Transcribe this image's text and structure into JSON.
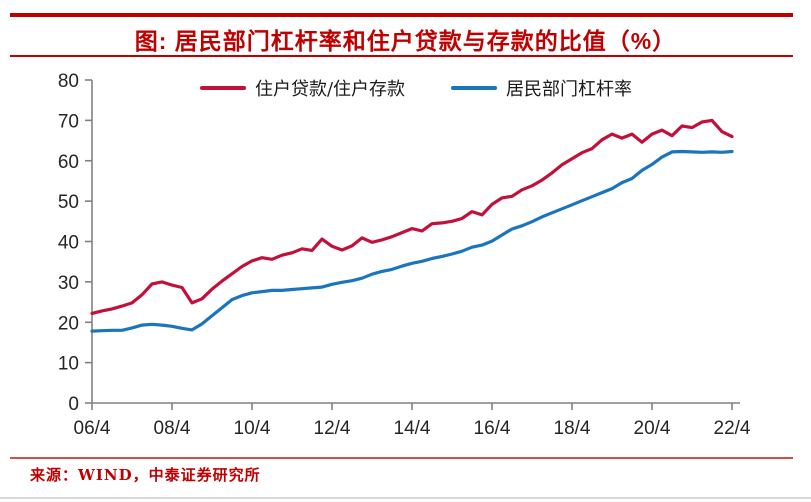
{
  "header": {
    "title": "图: 居民部门杠杆率和住户贷款与存款的比值（%）"
  },
  "footer": {
    "source": "来源：WIND，中泰证券研究所"
  },
  "colors": {
    "accent_red": "#C00000",
    "series_red": "#C21039",
    "series_blue": "#1B75BC",
    "axis_gray": "#808080",
    "tick_text": "#262626",
    "divider_gray": "#D9D9D9"
  },
  "chart_data": {
    "type": "line",
    "title": "图: 居民部门杠杆率和住户贷款与存款的比值（%）",
    "frequency": "quarterly",
    "x_start": "2006/4",
    "x_end": "2022/4",
    "x_tick_labels": [
      "06/4",
      "08/4",
      "10/4",
      "12/4",
      "14/4",
      "16/4",
      "18/4",
      "20/4",
      "22/4"
    ],
    "x_ticks_every_n_points": 8,
    "ylim": [
      0,
      80
    ],
    "y_ticks": [
      0,
      10,
      20,
      30,
      40,
      50,
      60,
      70,
      80
    ],
    "grid": false,
    "legend_position": "top-center",
    "series": [
      {
        "name": "住户贷款/住户存款",
        "color": "#C21039",
        "values": [
          22.2,
          22.8,
          23.3,
          24.0,
          24.8,
          26.8,
          29.5,
          30.0,
          29.2,
          28.6,
          24.8,
          25.8,
          28.2,
          30.2,
          32.0,
          33.8,
          35.2,
          36.0,
          35.6,
          36.6,
          37.2,
          38.2,
          37.8,
          40.6,
          38.8,
          37.9,
          38.9,
          40.9,
          39.8,
          40.4,
          41.2,
          42.2,
          43.2,
          42.6,
          44.4,
          44.6,
          45.0,
          45.7,
          47.4,
          46.6,
          49.2,
          50.8,
          51.2,
          52.8,
          53.8,
          55.2,
          57.0,
          59.0,
          60.5,
          62.0,
          63.0,
          65.2,
          66.6,
          65.6,
          66.6,
          64.6,
          66.6,
          67.6,
          66.2,
          68.6,
          68.2,
          69.6,
          70.0,
          67.2,
          66.0
        ]
      },
      {
        "name": "居民部门杠杆率",
        "color": "#1B75BC",
        "values": [
          17.8,
          17.9,
          18.0,
          18.0,
          18.6,
          19.3,
          19.5,
          19.3,
          19.0,
          18.5,
          18.1,
          19.6,
          21.6,
          23.6,
          25.6,
          26.6,
          27.3,
          27.6,
          27.9,
          27.9,
          28.1,
          28.3,
          28.5,
          28.7,
          29.4,
          29.9,
          30.3,
          30.9,
          31.9,
          32.6,
          33.1,
          33.9,
          34.6,
          35.1,
          35.8,
          36.3,
          36.9,
          37.6,
          38.6,
          39.1,
          40.1,
          41.6,
          43.1,
          43.9,
          44.9,
          46.1,
          47.1,
          48.1,
          49.1,
          50.1,
          51.1,
          52.1,
          53.1,
          54.6,
          55.6,
          57.6,
          59.1,
          60.9,
          62.2,
          62.3,
          62.2,
          62.1,
          62.2,
          62.1,
          62.3
        ]
      }
    ]
  }
}
